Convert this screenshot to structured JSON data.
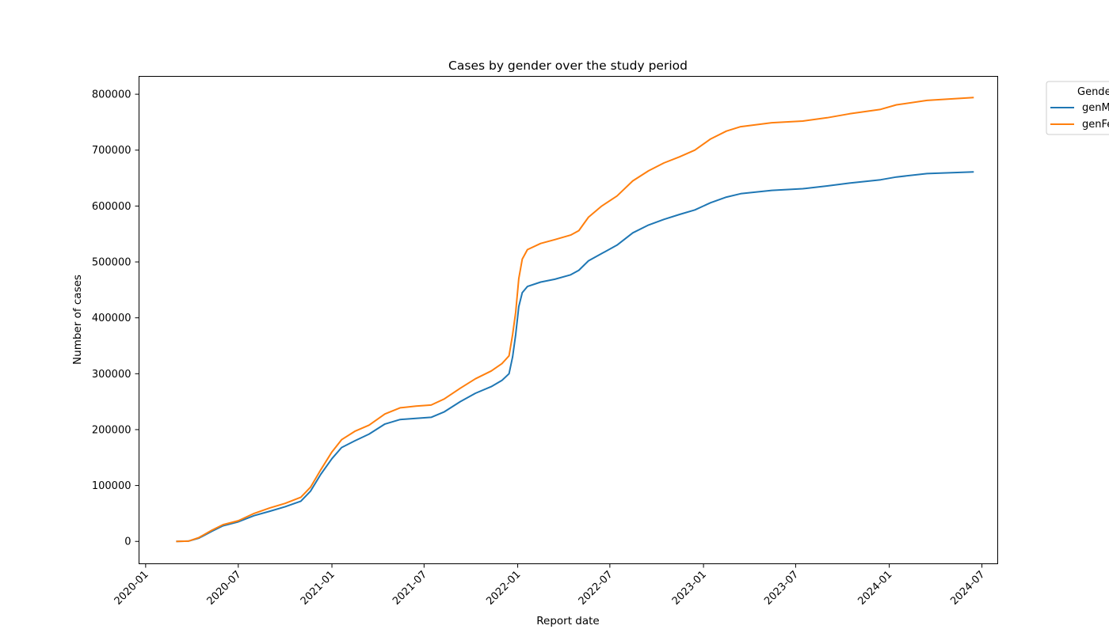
{
  "chart_data": {
    "type": "line",
    "title": "Cases by gender over the study period",
    "xlabel": "Report date",
    "ylabel": "Number of cases",
    "xlim": [
      "2019-12-19",
      "2024-08-01"
    ],
    "ylim": [
      -40000,
      832000
    ],
    "x_ticks": [
      "2020-01",
      "2020-07",
      "2021-01",
      "2021-07",
      "2022-01",
      "2022-07",
      "2023-01",
      "2023-07",
      "2024-01",
      "2024-07"
    ],
    "y_ticks": [
      0,
      100000,
      200000,
      300000,
      400000,
      500000,
      600000,
      700000,
      800000
    ],
    "grid": false,
    "legend": {
      "title": "Gender",
      "placement": "outside-top-right"
    },
    "series": [
      {
        "name": "genMale",
        "color": "#1f77b4",
        "points": [
          [
            "2020-03-01",
            0
          ],
          [
            "2020-03-25",
            500
          ],
          [
            "2020-04-15",
            6000
          ],
          [
            "2020-05-10",
            18000
          ],
          [
            "2020-06-01",
            28000
          ],
          [
            "2020-07-01",
            35000
          ],
          [
            "2020-08-01",
            46000
          ],
          [
            "2020-09-01",
            54000
          ],
          [
            "2020-10-01",
            62000
          ],
          [
            "2020-11-01",
            72000
          ],
          [
            "2020-11-20",
            90000
          ],
          [
            "2020-12-10",
            120000
          ],
          [
            "2021-01-01",
            148000
          ],
          [
            "2021-01-20",
            168000
          ],
          [
            "2021-02-15",
            180000
          ],
          [
            "2021-03-15",
            192000
          ],
          [
            "2021-04-15",
            210000
          ],
          [
            "2021-05-15",
            218000
          ],
          [
            "2021-06-15",
            220000
          ],
          [
            "2021-07-15",
            222000
          ],
          [
            "2021-08-10",
            232000
          ],
          [
            "2021-09-10",
            250000
          ],
          [
            "2021-10-10",
            265000
          ],
          [
            "2021-11-10",
            277000
          ],
          [
            "2021-12-01",
            288000
          ],
          [
            "2021-12-15",
            300000
          ],
          [
            "2021-12-22",
            330000
          ],
          [
            "2021-12-28",
            370000
          ],
          [
            "2022-01-03",
            420000
          ],
          [
            "2022-01-10",
            445000
          ],
          [
            "2022-01-20",
            456000
          ],
          [
            "2022-02-15",
            464000
          ],
          [
            "2022-03-15",
            469000
          ],
          [
            "2022-04-15",
            477000
          ],
          [
            "2022-05-01",
            485000
          ],
          [
            "2022-05-20",
            502000
          ],
          [
            "2022-06-15",
            515000
          ],
          [
            "2022-07-15",
            530000
          ],
          [
            "2022-08-15",
            552000
          ],
          [
            "2022-09-15",
            566000
          ],
          [
            "2022-10-15",
            576000
          ],
          [
            "2022-11-15",
            585000
          ],
          [
            "2022-12-15",
            593000
          ],
          [
            "2023-01-15",
            606000
          ],
          [
            "2023-02-15",
            616000
          ],
          [
            "2023-03-15",
            622000
          ],
          [
            "2023-05-15",
            628000
          ],
          [
            "2023-07-15",
            631000
          ],
          [
            "2023-09-01",
            636000
          ],
          [
            "2023-10-15",
            641000
          ],
          [
            "2023-12-15",
            647000
          ],
          [
            "2024-01-15",
            652000
          ],
          [
            "2024-03-15",
            658000
          ],
          [
            "2024-06-15",
            661000
          ]
        ]
      },
      {
        "name": "genFemale",
        "color": "#ff7f0e",
        "points": [
          [
            "2020-03-01",
            0
          ],
          [
            "2020-03-25",
            500
          ],
          [
            "2020-04-15",
            7000
          ],
          [
            "2020-05-10",
            20000
          ],
          [
            "2020-06-01",
            30000
          ],
          [
            "2020-07-01",
            37000
          ],
          [
            "2020-08-01",
            50000
          ],
          [
            "2020-09-01",
            60000
          ],
          [
            "2020-10-01",
            68000
          ],
          [
            "2020-11-01",
            79000
          ],
          [
            "2020-11-20",
            97000
          ],
          [
            "2020-12-10",
            128000
          ],
          [
            "2021-01-01",
            160000
          ],
          [
            "2021-01-20",
            182000
          ],
          [
            "2021-02-15",
            197000
          ],
          [
            "2021-03-15",
            208000
          ],
          [
            "2021-04-15",
            228000
          ],
          [
            "2021-05-15",
            239000
          ],
          [
            "2021-06-15",
            242000
          ],
          [
            "2021-07-15",
            244000
          ],
          [
            "2021-08-10",
            255000
          ],
          [
            "2021-09-10",
            274000
          ],
          [
            "2021-10-10",
            291000
          ],
          [
            "2021-11-10",
            305000
          ],
          [
            "2021-12-01",
            318000
          ],
          [
            "2021-12-15",
            332000
          ],
          [
            "2021-12-22",
            370000
          ],
          [
            "2021-12-28",
            410000
          ],
          [
            "2022-01-03",
            470000
          ],
          [
            "2022-01-10",
            505000
          ],
          [
            "2022-01-20",
            522000
          ],
          [
            "2022-02-15",
            533000
          ],
          [
            "2022-03-15",
            540000
          ],
          [
            "2022-04-15",
            548000
          ],
          [
            "2022-05-01",
            556000
          ],
          [
            "2022-05-20",
            580000
          ],
          [
            "2022-06-15",
            600000
          ],
          [
            "2022-07-15",
            618000
          ],
          [
            "2022-08-15",
            645000
          ],
          [
            "2022-09-15",
            663000
          ],
          [
            "2022-10-15",
            677000
          ],
          [
            "2022-11-15",
            688000
          ],
          [
            "2022-12-15",
            700000
          ],
          [
            "2023-01-15",
            720000
          ],
          [
            "2023-02-15",
            734000
          ],
          [
            "2023-03-15",
            742000
          ],
          [
            "2023-05-15",
            749000
          ],
          [
            "2023-07-15",
            752000
          ],
          [
            "2023-09-01",
            758000
          ],
          [
            "2023-10-15",
            765000
          ],
          [
            "2023-12-15",
            773000
          ],
          [
            "2024-01-15",
            781000
          ],
          [
            "2024-03-15",
            789000
          ],
          [
            "2024-06-15",
            794000
          ]
        ]
      }
    ]
  }
}
